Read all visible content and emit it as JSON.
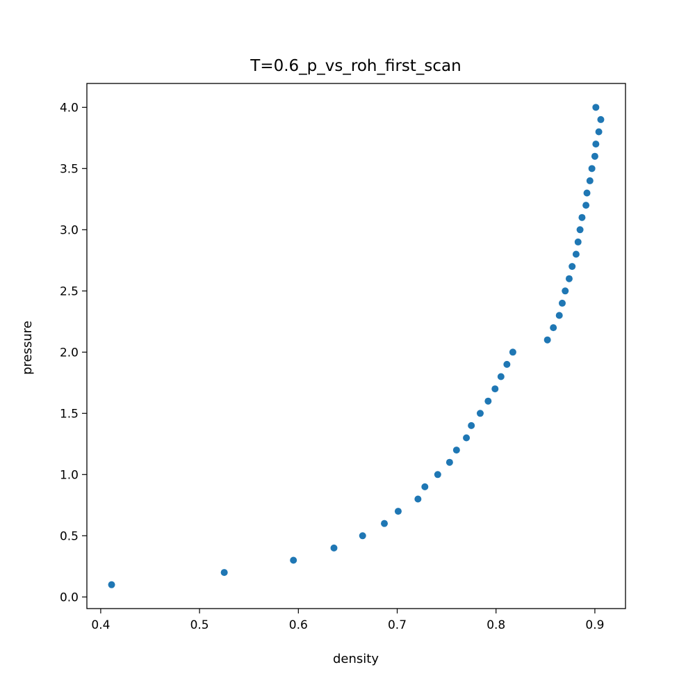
{
  "chart_data": {
    "type": "scatter",
    "title": "T=0.6_p_vs_roh_first_scan",
    "xlabel": "density",
    "ylabel": "pressure",
    "xlim": [
      0.386,
      0.931
    ],
    "ylim": [
      -0.095,
      4.195
    ],
    "xticks": [
      0.4,
      0.5,
      0.6,
      0.7,
      0.8,
      0.9
    ],
    "xtick_labels": [
      "0.4",
      "0.5",
      "0.6",
      "0.7",
      "0.8",
      "0.9"
    ],
    "yticks": [
      0.0,
      0.5,
      1.0,
      1.5,
      2.0,
      2.5,
      3.0,
      3.5,
      4.0
    ],
    "ytick_labels": [
      "0.0",
      "0.5",
      "1.0",
      "1.5",
      "2.0",
      "2.5",
      "3.0",
      "3.5",
      "4.0"
    ],
    "grid": false,
    "marker_color": "#1f77b4",
    "points": [
      {
        "x": 0.411,
        "y": 0.1
      },
      {
        "x": 0.525,
        "y": 0.2
      },
      {
        "x": 0.595,
        "y": 0.3
      },
      {
        "x": 0.636,
        "y": 0.4
      },
      {
        "x": 0.665,
        "y": 0.5
      },
      {
        "x": 0.687,
        "y": 0.6
      },
      {
        "x": 0.701,
        "y": 0.7
      },
      {
        "x": 0.721,
        "y": 0.8
      },
      {
        "x": 0.728,
        "y": 0.9
      },
      {
        "x": 0.741,
        "y": 1.0
      },
      {
        "x": 0.753,
        "y": 1.1
      },
      {
        "x": 0.76,
        "y": 1.2
      },
      {
        "x": 0.77,
        "y": 1.3
      },
      {
        "x": 0.775,
        "y": 1.4
      },
      {
        "x": 0.784,
        "y": 1.5
      },
      {
        "x": 0.792,
        "y": 1.6
      },
      {
        "x": 0.799,
        "y": 1.7
      },
      {
        "x": 0.805,
        "y": 1.8
      },
      {
        "x": 0.811,
        "y": 1.9
      },
      {
        "x": 0.817,
        "y": 2.0
      },
      {
        "x": 0.852,
        "y": 2.1
      },
      {
        "x": 0.858,
        "y": 2.2
      },
      {
        "x": 0.864,
        "y": 2.3
      },
      {
        "x": 0.867,
        "y": 2.4
      },
      {
        "x": 0.87,
        "y": 2.5
      },
      {
        "x": 0.874,
        "y": 2.6
      },
      {
        "x": 0.877,
        "y": 2.7
      },
      {
        "x": 0.881,
        "y": 2.8
      },
      {
        "x": 0.883,
        "y": 2.9
      },
      {
        "x": 0.885,
        "y": 3.0
      },
      {
        "x": 0.887,
        "y": 3.1
      },
      {
        "x": 0.891,
        "y": 3.2
      },
      {
        "x": 0.892,
        "y": 3.3
      },
      {
        "x": 0.895,
        "y": 3.4
      },
      {
        "x": 0.897,
        "y": 3.5
      },
      {
        "x": 0.9,
        "y": 3.6
      },
      {
        "x": 0.901,
        "y": 3.7
      },
      {
        "x": 0.904,
        "y": 3.8
      },
      {
        "x": 0.906,
        "y": 3.9
      },
      {
        "x": 0.901,
        "y": 4.0
      }
    ]
  }
}
